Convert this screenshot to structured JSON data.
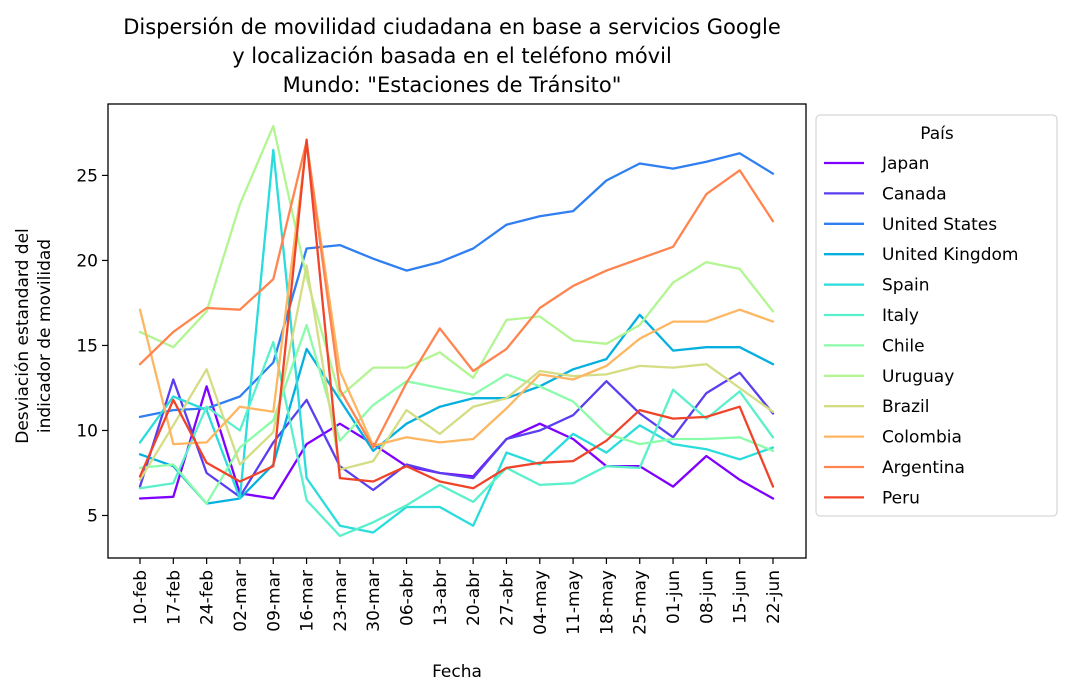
{
  "chart_data": {
    "type": "line",
    "title_lines": [
      "Dispersión de movilidad ciudadana en base a servicios Google",
      "y localización basada en el teléfono móvil",
      "Mundo: \"Estaciones de Tránsito\""
    ],
    "xlabel": "Fecha",
    "ylabel_lines": [
      "Desviación estandard del",
      "indicador de movilidad"
    ],
    "categories": [
      "10-feb",
      "17-feb",
      "24-feb",
      "02-mar",
      "09-mar",
      "16-mar",
      "23-mar",
      "30-mar",
      "06-abr",
      "13-abr",
      "20-abr",
      "27-abr",
      "04-may",
      "11-may",
      "18-may",
      "25-may",
      "01-jun",
      "08-jun",
      "15-jun",
      "22-jun"
    ],
    "ylim": [
      2.5,
      29.2
    ],
    "yticks": [
      5,
      10,
      15,
      20,
      25
    ],
    "grid": false,
    "legend": {
      "title": "País",
      "placement": "outside-right"
    },
    "series": [
      {
        "name": "Japan",
        "color": "#7f00ff",
        "values": [
          6.0,
          6.1,
          12.6,
          6.3,
          6.0,
          9.2,
          10.4,
          9.2,
          7.9,
          7.5,
          7.3,
          9.5,
          10.4,
          9.5,
          7.9,
          7.9,
          6.7,
          8.5,
          7.1,
          6.0
        ]
      },
      {
        "name": "Canada",
        "color": "#5a3ff0",
        "values": [
          6.7,
          13.0,
          7.5,
          6.1,
          9.3,
          11.8,
          7.9,
          6.5,
          8.0,
          7.5,
          7.2,
          9.5,
          10.0,
          10.9,
          12.9,
          11.0,
          9.6,
          12.2,
          13.4,
          11.0
        ]
      },
      {
        "name": "United States",
        "color": "#2f7ff2",
        "values": [
          10.8,
          11.2,
          11.3,
          12.0,
          14.0,
          20.7,
          20.9,
          20.1,
          19.4,
          19.9,
          20.7,
          22.1,
          22.6,
          22.9,
          24.7,
          25.7,
          25.4,
          25.8,
          26.3,
          25.1
        ]
      },
      {
        "name": "United Kingdom",
        "color": "#05b0e0",
        "values": [
          8.6,
          7.9,
          5.7,
          6.0,
          8.0,
          14.8,
          11.8,
          8.8,
          10.4,
          11.4,
          11.9,
          11.9,
          12.6,
          13.6,
          14.2,
          16.8,
          14.7,
          14.9,
          14.9,
          13.9
        ]
      },
      {
        "name": "Spain",
        "color": "#2bdcdc",
        "values": [
          9.3,
          12.0,
          11.2,
          6.0,
          26.5,
          7.2,
          4.4,
          4.0,
          5.5,
          5.5,
          4.4,
          8.7,
          8.0,
          9.8,
          8.7,
          10.3,
          9.2,
          8.9,
          8.3,
          9.0
        ]
      },
      {
        "name": "Italy",
        "color": "#5bf0cc",
        "values": [
          6.6,
          6.9,
          11.4,
          10.0,
          15.2,
          5.9,
          3.8,
          4.6,
          5.6,
          6.8,
          5.8,
          7.8,
          6.8,
          6.9,
          7.9,
          7.8,
          12.4,
          10.7,
          12.3,
          9.6
        ]
      },
      {
        "name": "Chile",
        "color": "#8bfcaa",
        "values": [
          7.8,
          8.0,
          5.7,
          9.0,
          10.6,
          16.2,
          9.4,
          11.5,
          12.9,
          12.5,
          12.1,
          13.3,
          12.6,
          11.7,
          9.8,
          9.2,
          9.5,
          9.5,
          9.6,
          8.8
        ]
      },
      {
        "name": "Uruguay",
        "color": "#b3f592",
        "values": [
          15.8,
          14.9,
          17.0,
          23.3,
          27.9,
          19.0,
          12.0,
          13.7,
          13.7,
          14.6,
          13.1,
          16.5,
          16.7,
          15.3,
          15.1,
          16.2,
          18.7,
          19.9,
          19.5,
          17.0
        ]
      },
      {
        "name": "Brazil",
        "color": "#d5dd84",
        "values": [
          7.1,
          10.3,
          13.6,
          8.0,
          9.9,
          19.7,
          7.7,
          8.2,
          11.2,
          9.8,
          11.4,
          11.9,
          13.5,
          13.2,
          13.3,
          13.8,
          13.7,
          13.9,
          12.5,
          11.1
        ]
      },
      {
        "name": "Colombia",
        "color": "#fdb661",
        "values": [
          17.1,
          9.2,
          9.3,
          11.4,
          11.1,
          26.9,
          13.5,
          9.1,
          9.6,
          9.3,
          9.5,
          11.3,
          13.3,
          13.0,
          13.8,
          15.4,
          16.4,
          16.4,
          17.1,
          16.4
        ]
      },
      {
        "name": "Argentina",
        "color": "#ff8450",
        "values": [
          13.9,
          15.8,
          17.2,
          17.1,
          18.9,
          27.0,
          12.4,
          9.0,
          12.8,
          16.0,
          13.5,
          14.8,
          17.2,
          18.5,
          19.4,
          20.1,
          20.8,
          23.9,
          25.3,
          22.3
        ]
      },
      {
        "name": "Peru",
        "color": "#f0442a",
        "values": [
          7.3,
          11.8,
          8.1,
          7.0,
          7.9,
          27.1,
          7.2,
          7.0,
          7.9,
          7.0,
          6.6,
          7.8,
          8.1,
          8.2,
          9.4,
          11.2,
          10.7,
          10.8,
          11.4,
          6.7
        ]
      }
    ]
  }
}
